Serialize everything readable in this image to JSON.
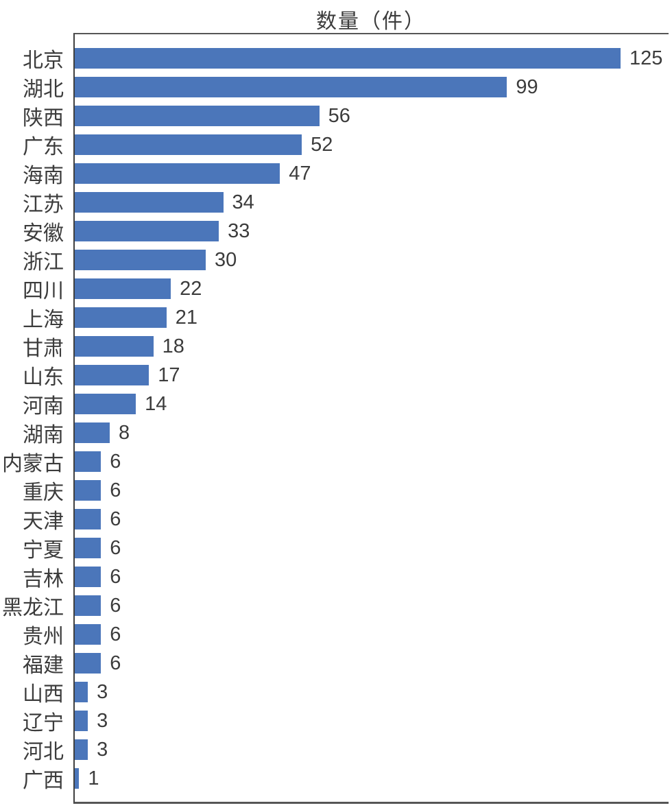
{
  "chart_data": {
    "type": "bar",
    "orientation": "horizontal",
    "title": "数量（件）",
    "categories": [
      "北京",
      "湖北",
      "陕西",
      "广东",
      "海南",
      "江苏",
      "安徽",
      "浙江",
      "四川",
      "上海",
      "甘肃",
      "山东",
      "河南",
      "湖南",
      "内蒙古",
      "重庆",
      "天津",
      "宁夏",
      "吉林",
      "黑龙江",
      "贵州",
      "福建",
      "山西",
      "辽宁",
      "河北",
      "广西"
    ],
    "values": [
      125,
      99,
      56,
      52,
      47,
      34,
      33,
      30,
      22,
      21,
      18,
      17,
      14,
      8,
      6,
      6,
      6,
      6,
      6,
      6,
      6,
      6,
      3,
      3,
      3,
      1
    ],
    "xlim": [
      0,
      136
    ],
    "grid": "off",
    "legend": "none",
    "value_labels_shown": true,
    "colors": {
      "bar": "#4b76ba",
      "axis": "#565656",
      "text": "#3c3c3c",
      "background": "#ffffff"
    }
  }
}
